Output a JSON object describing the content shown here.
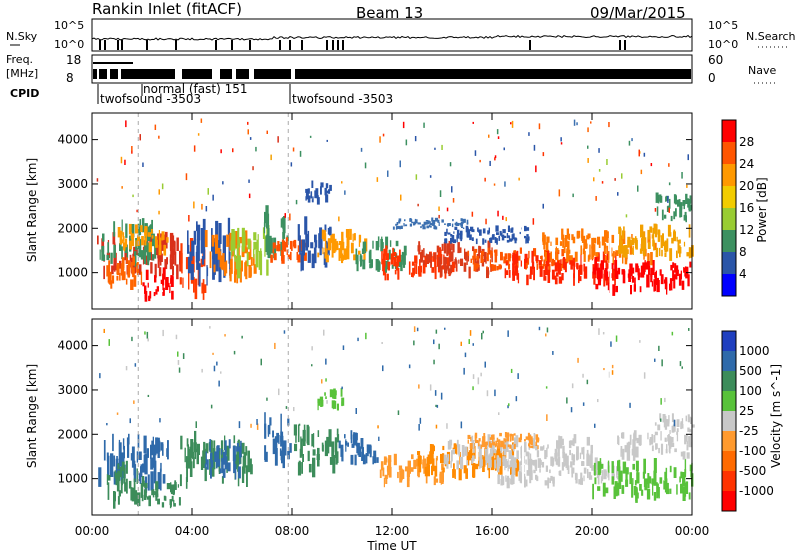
{
  "header": {
    "station": "Rankin Inlet (fitACF)",
    "beam": "Beam 13",
    "date": "09/Mar/2015"
  },
  "panels": {
    "nsky_label": "N.Sky",
    "nsearch_label": "N.Search",
    "nsky_ticks": [
      "10^5",
      "10^0"
    ],
    "nsearch_ticks": [
      "10^5",
      "10^0"
    ],
    "freq_label": "Freq.",
    "freq_unit": "[MHz]",
    "freq_ticks": [
      "18",
      "8"
    ],
    "nave_label": "Nave",
    "nave_ticks": [
      "60",
      "0"
    ],
    "cpid_label": "CPID",
    "cpid_segments": [
      "twofsound -3503",
      "normal (fast) 151",
      "twofsound -3503"
    ]
  },
  "chart_data": [
    {
      "type": "heatmap",
      "title": "Power",
      "ylabel": "Slant Range [km]",
      "xlabel": "",
      "y_ticks": [
        "4000",
        "3000",
        "2000",
        "1000"
      ],
      "ylim": [
        180,
        4600
      ],
      "colorbar_label": "Power [dB]",
      "colorbar_ticks": [
        "28",
        "24",
        "20",
        "16",
        "12",
        "8",
        "4"
      ],
      "colorbar_colors": [
        "#ff0000",
        "#ff5500",
        "#ff9900",
        "#f2cc00",
        "#99cc33",
        "#3c9060",
        "#2a55a8",
        "#0000ff"
      ]
    },
    {
      "type": "heatmap",
      "title": "Velocity",
      "ylabel": "Slant Range [km]",
      "xlabel": "Time UT",
      "y_ticks": [
        "4000",
        "3000",
        "2000",
        "1000"
      ],
      "ylim": [
        180,
        4600
      ],
      "colorbar_label": "Velocity [m s^-1]",
      "colorbar_ticks": [
        "1000",
        "500",
        "100",
        "25",
        "-25",
        "-100",
        "-500",
        "-1000"
      ],
      "colorbar_colors": [
        "#1f3fbf",
        "#2f6aaa",
        "#3c8c5a",
        "#58c23a",
        "#c8c8c8",
        "#ff9a2e",
        "#ff6a00",
        "#ff3300",
        "#ff0000"
      ]
    }
  ],
  "x_axis": {
    "ticks": [
      "00:00",
      "04:00",
      "08:00",
      "12:00",
      "16:00",
      "20:00",
      "00:00"
    ],
    "title": "Time UT"
  },
  "power_blobs": [
    [
      0.2,
      3.5,
      1000,
      1800,
      "#d9301a"
    ],
    [
      0.3,
      2.5,
      1300,
      2100,
      "#3c9060"
    ],
    [
      0.5,
      2.0,
      700,
      1300,
      "#ff6400"
    ],
    [
      1.0,
      3.0,
      1500,
      2000,
      "#ff9a00"
    ],
    [
      2.0,
      3.2,
      400,
      1000,
      "#ff0000"
    ],
    [
      3.5,
      4.5,
      600,
      1600,
      "#ff3b00"
    ],
    [
      3.8,
      5.5,
      900,
      2100,
      "#2a55a8"
    ],
    [
      4.5,
      6.5,
      900,
      1800,
      "#ff7a00"
    ],
    [
      5.5,
      7.0,
      1000,
      2000,
      "#99cc33"
    ],
    [
      6.8,
      7.8,
      1400,
      2400,
      "#3c9060"
    ],
    [
      7.0,
      8.5,
      1200,
      1700,
      "#ff5000"
    ],
    [
      8.2,
      9.5,
      1200,
      2100,
      "#2a55a8"
    ],
    [
      9.0,
      11.0,
      1300,
      1900,
      "#ff9900"
    ],
    [
      10.5,
      12.5,
      1100,
      1700,
      "#3c9060"
    ],
    [
      11.5,
      14.5,
      900,
      1500,
      "#ff3300"
    ],
    [
      13.0,
      16.0,
      1000,
      1600,
      "#d93a1a"
    ],
    [
      14.0,
      17.5,
      1700,
      2000,
      "#2a55a8"
    ],
    [
      15.0,
      19.0,
      1100,
      1500,
      "#ff5500"
    ],
    [
      16.5,
      21.0,
      800,
      1400,
      "#ff2200"
    ],
    [
      18.0,
      22.5,
      1300,
      1900,
      "#ff7700"
    ],
    [
      20.0,
      24.0,
      600,
      1200,
      "#ff0000"
    ],
    [
      21.0,
      24.0,
      1400,
      2000,
      "#f2a000"
    ],
    [
      12.0,
      15.0,
      2000,
      2200,
      "#3c70b0"
    ],
    [
      8.5,
      9.5,
      2600,
      3000,
      "#2a55a8"
    ],
    [
      22.5,
      24.0,
      2200,
      2700,
      "#3c9060"
    ]
  ],
  "velocity_blobs": [
    [
      0.2,
      3.0,
      800,
      1900,
      "#2f6aaa"
    ],
    [
      0.5,
      2.0,
      500,
      1300,
      "#3c8c5a"
    ],
    [
      2.0,
      3.5,
      400,
      900,
      "#3c8c5a"
    ],
    [
      3.5,
      6.5,
      900,
      1900,
      "#3c8c5a"
    ],
    [
      4.5,
      6.0,
      1100,
      1800,
      "#2f6aaa"
    ],
    [
      6.8,
      8.0,
      1400,
      2300,
      "#2f6aaa"
    ],
    [
      8.0,
      9.8,
      1200,
      2100,
      "#3c8c5a"
    ],
    [
      9.8,
      11.5,
      1400,
      2000,
      "#2f6aaa"
    ],
    [
      11.5,
      14.0,
      900,
      1500,
      "#ff9a2e"
    ],
    [
      13.0,
      17.0,
      1100,
      1700,
      "#ff8a00"
    ],
    [
      14.0,
      20.0,
      1300,
      1900,
      "#c8c8c8"
    ],
    [
      16.0,
      21.0,
      900,
      1400,
      "#c8c8c8"
    ],
    [
      20.0,
      24.0,
      600,
      1300,
      "#58c23a"
    ],
    [
      21.0,
      24.0,
      1500,
      2000,
      "#c8c8c8"
    ],
    [
      15.0,
      18.0,
      1700,
      2000,
      "#ff9a2e"
    ],
    [
      9.0,
      10.0,
      2600,
      3000,
      "#58c23a"
    ],
    [
      22.5,
      24.0,
      2000,
      2400,
      "#c8c8c8"
    ]
  ]
}
